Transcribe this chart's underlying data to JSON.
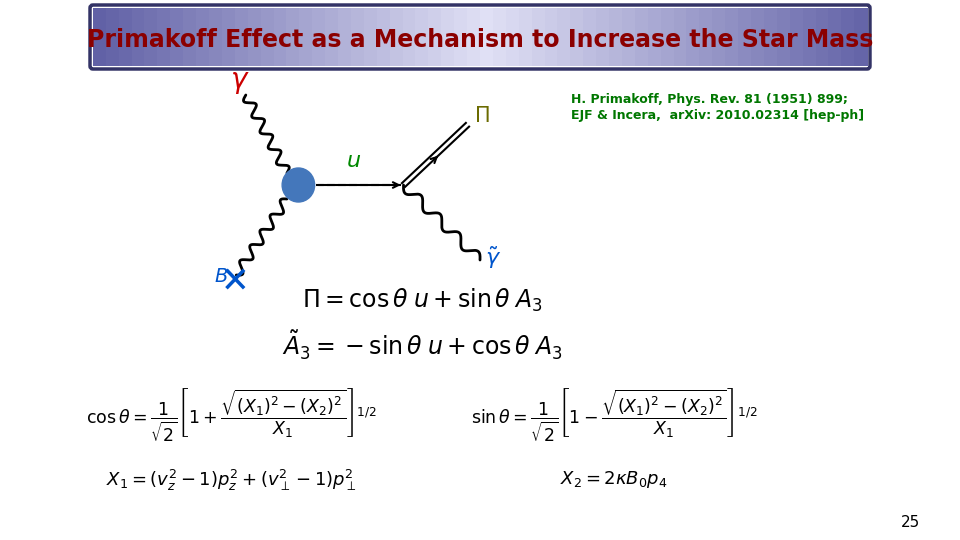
{
  "title": "Primakoff Effect as a Mechanism to Increase the Star Mass",
  "title_color": "#8B0000",
  "reference_line1": "H. Primakoff, Phys. Rev. 81 (1951) 899;",
  "reference_line2": "EJF & Incera,  arXiv: 2010.02314 [hep-ph]",
  "reference_color": "#007700",
  "page_number": "25",
  "bg_color": "#FFFFFF",
  "gamma_color": "#CC0000",
  "u_color": "#008800",
  "Pi_color": "#6B6B00",
  "gamma_tilde_color": "#0055CC",
  "B_color": "#0055CC",
  "blob_color": "#4477BB",
  "wavy_color": "#000000"
}
